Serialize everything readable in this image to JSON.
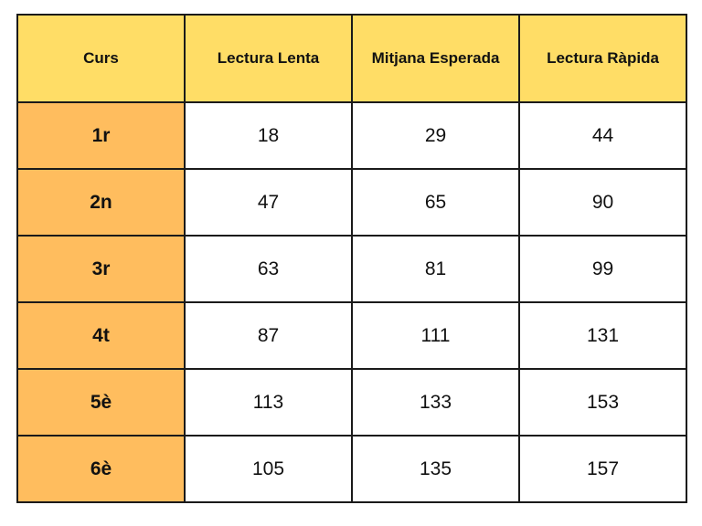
{
  "table": {
    "headers": [
      "Curs",
      "Lectura Lenta",
      "Mitjana Esperada",
      "Lectura Ràpida"
    ],
    "rows": [
      {
        "curs": "1r",
        "lenta": "18",
        "mitjana": "29",
        "rapida": "44"
      },
      {
        "curs": "2n",
        "lenta": "47",
        "mitjana": "65",
        "rapida": "90"
      },
      {
        "curs": "3r",
        "lenta": "63",
        "mitjana": "81",
        "rapida": "99"
      },
      {
        "curs": "4t",
        "lenta": "87",
        "mitjana": "111",
        "rapida": "131"
      },
      {
        "curs": "5è",
        "lenta": "113",
        "mitjana": "133",
        "rapida": "153"
      },
      {
        "curs": "6è",
        "lenta": "105",
        "mitjana": "135",
        "rapida": "157"
      }
    ]
  },
  "colors": {
    "header_background": "#ffdd66",
    "row_header_background": "#ffbd5e",
    "cell_background": "#ffffff",
    "border": "#1a1a1a"
  }
}
